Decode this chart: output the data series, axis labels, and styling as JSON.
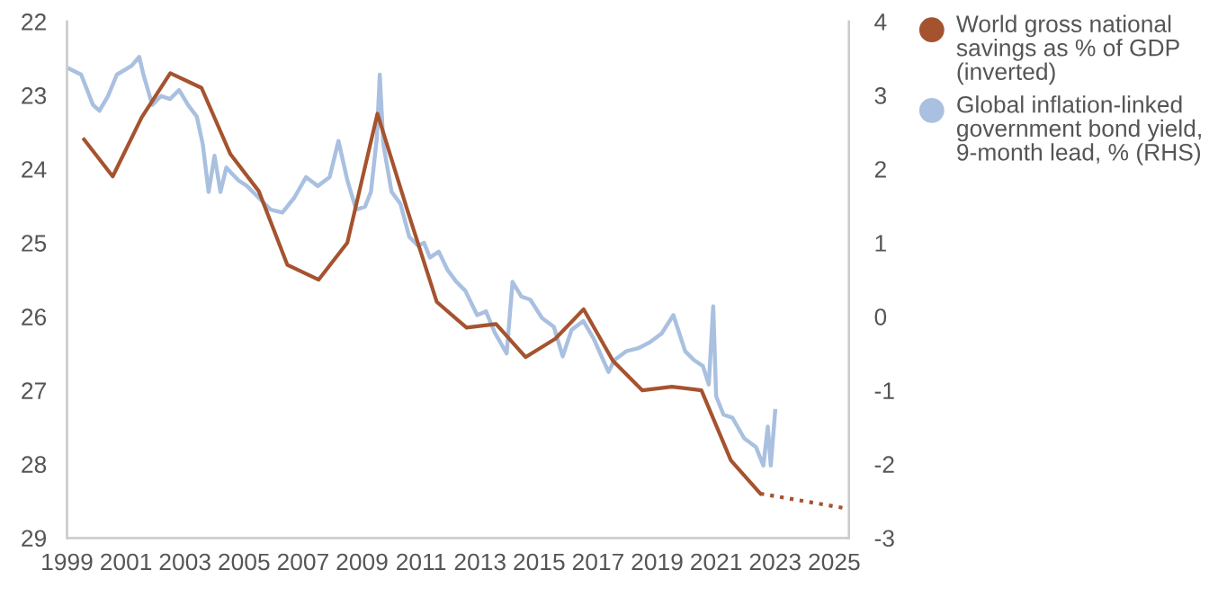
{
  "chart_data": {
    "type": "line",
    "ylim": [
      29,
      22
    ],
    "yticks": [
      22,
      23,
      24,
      25,
      26,
      27,
      28,
      29
    ],
    "y2lim": [
      -3,
      4
    ],
    "y2ticks": [
      -3,
      -2,
      -1,
      0,
      1,
      2,
      3,
      4
    ],
    "xlim": [
      1999,
      2025.5
    ],
    "xticks": [
      1999,
      2001,
      2003,
      2005,
      2007,
      2009,
      2011,
      2013,
      2015,
      2017,
      2019,
      2021,
      2023,
      2025
    ],
    "grid": false,
    "legend": "right",
    "series": [
      {
        "name": "World gross national savings as % of GDP (inverted)",
        "color": "#a5532f",
        "line_style": "solid",
        "x": [
          1999.58,
          2000.55,
          2001.53,
          2002.5,
          2003.56,
          2004.54,
          2005.5,
          2006.47,
          2007.53,
          2008.5,
          2009.52,
          2010.53,
          2011.53,
          2012.54,
          2013.54,
          2014.54,
          2015.55,
          2016.51,
          2017.5,
          2018.5,
          2019.5,
          2020.5,
          2021.5,
          2022.5
        ],
        "values": [
          23.6,
          24.1,
          23.3,
          22.7,
          22.9,
          23.8,
          24.3,
          25.3,
          25.5,
          25.0,
          23.25,
          24.55,
          25.8,
          26.15,
          26.1,
          26.55,
          26.3,
          25.9,
          26.6,
          27.0,
          26.95,
          27.0,
          27.95,
          28.4
        ]
      },
      {
        "color": "#a5532f",
        "line_style": "dotted",
        "x": [
          2022.5,
          2025.4
        ],
        "values": [
          28.4,
          28.6
        ]
      },
      {
        "name": "Global inflation-linked government bond yield, 9-month lead, % (RHS)",
        "color": "#a9c0e0",
        "line_style": "solid",
        "axis": "y2",
        "x": [
          1999.08,
          1999.48,
          1999.88,
          2000.1,
          2000.39,
          2000.69,
          2001.19,
          2001.45,
          2001.59,
          2001.89,
          2002.19,
          2002.49,
          2002.8,
          2003.1,
          2003.4,
          2003.6,
          2003.8,
          2004.0,
          2004.2,
          2004.4,
          2004.8,
          2005.1,
          2005.5,
          2005.9,
          2006.3,
          2006.7,
          2007.1,
          2007.5,
          2007.9,
          2008.2,
          2008.5,
          2008.8,
          2009.1,
          2009.3,
          2009.5,
          2009.6,
          2009.72,
          2010.0,
          2010.3,
          2010.6,
          2010.9,
          2011.1,
          2011.3,
          2011.6,
          2011.9,
          2012.2,
          2012.5,
          2012.9,
          2013.2,
          2013.5,
          2013.9,
          2014.1,
          2014.4,
          2014.7,
          2015.1,
          2015.5,
          2015.8,
          2016.1,
          2016.5,
          2016.85,
          2017.35,
          2017.55,
          2017.95,
          2018.35,
          2018.75,
          2019.15,
          2019.55,
          2019.95,
          2020.25,
          2020.55,
          2020.75,
          2020.9,
          2021.0,
          2021.25,
          2021.55,
          2021.95,
          2022.35,
          2022.6,
          2022.75,
          2022.85,
          2023.0
        ],
        "values": [
          3.36,
          3.28,
          2.87,
          2.79,
          2.99,
          3.28,
          3.4,
          3.52,
          3.28,
          2.87,
          2.99,
          2.95,
          3.07,
          2.87,
          2.71,
          2.34,
          1.69,
          2.18,
          1.69,
          2.02,
          1.85,
          1.77,
          1.61,
          1.45,
          1.41,
          1.61,
          1.89,
          1.77,
          1.89,
          2.38,
          1.85,
          1.45,
          1.49,
          1.69,
          2.42,
          3.28,
          2.34,
          1.69,
          1.53,
          1.08,
          0.96,
          1.0,
          0.8,
          0.88,
          0.63,
          0.47,
          0.35,
          0.02,
          0.07,
          -0.22,
          -0.5,
          0.47,
          0.27,
          0.23,
          -0.02,
          -0.14,
          -0.54,
          -0.18,
          -0.06,
          -0.3,
          -0.75,
          -0.59,
          -0.47,
          -0.43,
          -0.35,
          -0.23,
          0.02,
          -0.47,
          -0.59,
          -0.67,
          -0.92,
          0.14,
          -1.08,
          -1.33,
          -1.37,
          -1.65,
          -1.77,
          -2.02,
          -1.49,
          -2.02,
          -1.28
        ]
      }
    ]
  }
}
